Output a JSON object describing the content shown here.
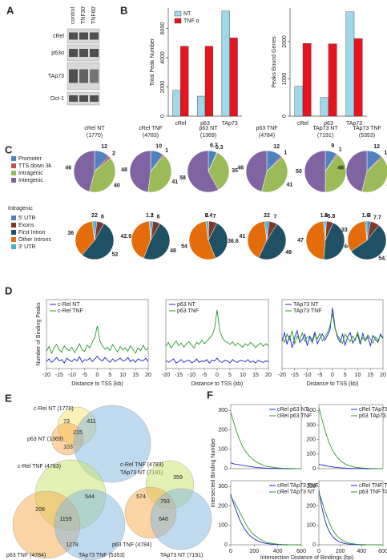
{
  "panels": [
    "A",
    "B",
    "C",
    "D",
    "E",
    "F"
  ],
  "blot": {
    "lanes": [
      "control",
      "TNF30'",
      "TNF60'"
    ],
    "rows": [
      "cRel",
      "p63α",
      "TAp73",
      "Oct-1"
    ]
  },
  "pie_legends": [
    {
      "labels": [
        "Promoter",
        "TTS down 3k",
        "Intragenic",
        "Intergenic"
      ],
      "colors": [
        "#4f81bd",
        "#c0504d",
        "#9bbb59",
        "#8064a2"
      ]
    },
    {
      "title": "Intragenic",
      "labels": [
        "5' UTR",
        "Exons",
        "First Intron",
        "Other Introns",
        "3' UTR"
      ],
      "colors": [
        "#4f81bd",
        "#7b3a2c",
        "#1f5064",
        "#e46c0a",
        "#4bacc6"
      ]
    }
  ],
  "venns": [
    {
      "labels": [
        "c-Rel  NT (1770)",
        "p63  NT (1369)",
        "TAp73  NT (7191)"
      ],
      "numbers": [
        73,
        411,
        215,
        103
      ]
    },
    {
      "labels": [
        "c-Rel  TNF (4783)",
        "p63  TNF (4784)",
        "TAp73  TNF (5353)"
      ],
      "numbers": [
        208,
        544,
        1159,
        1278
      ]
    },
    {
      "labels": [
        "c-Rel  TNF (4783)",
        "p63  TNF (4784)",
        "TAp73  NT (7191)"
      ],
      "numbers": [
        359,
        574,
        793,
        646
      ]
    }
  ],
  "chart_data": [
    {
      "type": "bar",
      "ylabel": "Total Peak Number",
      "categories": [
        "cRel",
        "p63",
        "TAp73"
      ],
      "series": [
        {
          "name": "NT",
          "color": "#9fd8ea",
          "values": [
            1770,
            1369,
            7191
          ]
        },
        {
          "name": "TNF α",
          "color": "#e8141c",
          "values": [
            4783,
            4784,
            5353
          ]
        }
      ],
      "ylim": [
        0,
        7400
      ],
      "yticks": [
        0,
        2000,
        4000,
        6000
      ]
    },
    {
      "type": "bar",
      "ylabel": "Peaks Bound Genes",
      "categories": [
        "cRel",
        "p63",
        "TAp73"
      ],
      "series": [
        {
          "color": "#9fd8ea",
          "values": [
            800,
            500,
            2800
          ]
        },
        {
          "color": "#e8141c",
          "values": [
            1950,
            1940,
            2080
          ]
        }
      ],
      "ylim": [
        0,
        2900
      ],
      "yticks": [
        0,
        1000,
        2000
      ]
    },
    {
      "type": "pie",
      "legend": 0,
      "title": "cRel NT",
      "subtitle": "(1770)",
      "values": [
        12,
        2,
        40,
        46
      ]
    },
    {
      "type": "pie",
      "legend": 0,
      "title": "cRel TNF",
      "subtitle": "(4783)",
      "values": [
        10,
        1,
        41,
        48
      ]
    },
    {
      "type": "pie",
      "legend": 0,
      "title": "p63 NT",
      "subtitle": "(1369)",
      "values": [
        6.7,
        0.3,
        35,
        58
      ]
    },
    {
      "type": "pie",
      "legend": 0,
      "title": "p63 TNF",
      "subtitle": "(4784)",
      "values": [
        12,
        1,
        41,
        46
      ]
    },
    {
      "type": "pie",
      "legend": 0,
      "title": "TAp73 NT",
      "subtitle": "(7191)",
      "values": [
        9,
        1,
        40,
        50
      ]
    },
    {
      "type": "pie",
      "legend": 0,
      "title": "TAp73 TNF",
      "subtitle": "(5353)",
      "values": [
        12,
        1,
        41,
        46
      ]
    },
    {
      "type": "pie",
      "legend": 1,
      "values": [
        2,
        6,
        52,
        36,
        2
      ]
    },
    {
      "type": "pie",
      "legend": 1,
      "values": [
        2,
        6,
        48,
        42.9,
        1.1
      ]
    },
    {
      "type": "pie",
      "legend": 1,
      "values": [
        0.4,
        7,
        36.6,
        54,
        2
      ]
    },
    {
      "type": "pie",
      "legend": 1,
      "values": [
        2,
        7,
        48,
        41,
        2
      ]
    },
    {
      "type": "pie",
      "legend": 1,
      "values": [
        1,
        5.8,
        44.6,
        47,
        1.6
      ]
    },
    {
      "type": "pie",
      "legend": 1,
      "values": [
        3,
        7.7,
        54.7,
        33,
        1.6
      ]
    },
    {
      "type": "line",
      "ylabel": "Number of Binding Peaks",
      "xlabel": "Distance to TSS (kb)",
      "x": [
        -20,
        -19,
        -18,
        -17,
        -16,
        -15,
        -14,
        -13,
        -12,
        -11,
        -10,
        -9,
        -8,
        -7,
        -6,
        -5,
        -4,
        -3,
        -2,
        -1,
        0,
        1,
        2,
        3,
        4,
        5,
        6,
        7,
        8,
        9,
        10,
        11,
        12,
        13,
        14,
        15,
        16,
        17,
        18,
        19,
        20
      ],
      "xlim": [
        -20,
        20
      ],
      "ylim": [
        0,
        100
      ],
      "xticks": [
        -20,
        -15,
        -10,
        -5,
        0,
        5,
        10,
        15,
        20
      ],
      "series": [
        {
          "name": "c-Rel NT",
          "color": "#1f1fd0",
          "values": [
            10,
            14,
            9,
            12,
            16,
            11,
            13,
            8,
            15,
            12,
            10,
            14,
            11,
            17,
            9,
            13,
            12,
            15,
            10,
            14,
            18,
            13,
            11,
            16,
            12,
            9,
            14,
            10,
            13,
            15,
            11,
            12,
            16,
            10,
            13,
            9,
            14,
            12,
            11,
            15,
            10
          ]
        },
        {
          "name": "c-Rel TNF",
          "color": "#2a9a2a",
          "values": [
            25,
            32,
            22,
            30,
            35,
            27,
            24,
            33,
            28,
            26,
            31,
            23,
            29,
            36,
            27,
            25,
            34,
            30,
            38,
            45,
            62,
            40,
            33,
            28,
            31,
            26,
            35,
            29,
            24,
            32,
            27,
            30,
            25,
            33,
            28,
            22,
            30,
            26,
            34,
            27,
            29
          ]
        }
      ]
    },
    {
      "type": "line",
      "xlabel": "Distance to TSS (kb)",
      "x": [
        -20,
        -19,
        -18,
        -17,
        -16,
        -15,
        -14,
        -13,
        -12,
        -11,
        -10,
        -9,
        -8,
        -7,
        -6,
        -5,
        -4,
        -3,
        -2,
        -1,
        0,
        1,
        2,
        3,
        4,
        5,
        6,
        7,
        8,
        9,
        10,
        11,
        12,
        13,
        14,
        15,
        16,
        17,
        18,
        19,
        20
      ],
      "xlim": [
        -20,
        20
      ],
      "ylim": [
        0,
        100
      ],
      "xticks": [
        -20,
        -15,
        -10,
        -5,
        0,
        5,
        10,
        15,
        20
      ],
      "series": [
        {
          "name": "p63 NT",
          "color": "#1f1fd0",
          "values": [
            12,
            9,
            11,
            14,
            8,
            10,
            13,
            9,
            11,
            12,
            8,
            10,
            14,
            9,
            11,
            10,
            13,
            8,
            12,
            11,
            15,
            10,
            9,
            12,
            11,
            8,
            13,
            10,
            9,
            12,
            11,
            10,
            13,
            9,
            11,
            8,
            12,
            10,
            9,
            11,
            10
          ]
        },
        {
          "name": "p63 TNF",
          "color": "#2a9a2a",
          "values": [
            32,
            38,
            30,
            35,
            40,
            33,
            37,
            31,
            36,
            39,
            34,
            30,
            38,
            35,
            41,
            36,
            40,
            44,
            48,
            58,
            85,
            55,
            45,
            40,
            38,
            35,
            39,
            33,
            37,
            34,
            31,
            36,
            33,
            38,
            35,
            30,
            34,
            37,
            32,
            36,
            33
          ]
        }
      ]
    },
    {
      "type": "line",
      "xlabel": "Distance to TSS (kb)",
      "x": [
        -20,
        -19,
        -18,
        -17,
        -16,
        -15,
        -14,
        -13,
        -12,
        -11,
        -10,
        -9,
        -8,
        -7,
        -6,
        -5,
        -4,
        -3,
        -2,
        -1,
        0,
        1,
        2,
        3,
        4,
        5,
        6,
        7,
        8,
        9,
        10,
        11,
        12,
        13,
        14,
        15,
        16,
        17,
        18,
        19,
        20
      ],
      "xlim": [
        -20,
        20
      ],
      "ylim": [
        0,
        100
      ],
      "xticks": [
        -20,
        -15,
        -10,
        -5,
        0,
        5,
        10,
        15,
        20
      ],
      "series": [
        {
          "name": "TAp73 NT",
          "color": "#1f1fd0",
          "values": [
            40,
            52,
            35,
            48,
            30,
            45,
            55,
            38,
            42,
            50,
            33,
            47,
            40,
            53,
            36,
            44,
            50,
            41,
            48,
            56,
            88,
            60,
            45,
            38,
            50,
            34,
            46,
            52,
            37,
            43,
            49,
            35,
            51,
            40,
            46,
            33,
            48,
            42,
            38,
            50,
            44
          ]
        },
        {
          "name": "TAp73 TNF",
          "color": "#2a9a2a",
          "values": [
            45,
            38,
            50,
            42,
            55,
            36,
            47,
            41,
            52,
            39,
            46,
            44,
            37,
            49,
            43,
            51,
            40,
            46,
            52,
            62,
            80,
            58,
            48,
            42,
            36,
            50,
            44,
            39,
            47,
            41,
            53,
            38,
            45,
            40,
            49,
            43,
            37,
            46,
            41,
            48,
            43
          ]
        }
      ]
    },
    {
      "type": "line",
      "ylabel": "Intersected Binding Number",
      "x": [
        0,
        25,
        50,
        75,
        100,
        125,
        150,
        175,
        200,
        225,
        250,
        275,
        300,
        325,
        350,
        375,
        400,
        425,
        450,
        475,
        500,
        525,
        550,
        575,
        600
      ],
      "xlim": [
        0,
        600
      ],
      "ylim": [
        0,
        330
      ],
      "yticks": [
        0,
        100,
        200,
        300
      ],
      "series": [
        {
          "name": "cRel p63 NT",
          "color": "#1f1fd0",
          "values": [
            30,
            25,
            22,
            20,
            17,
            14,
            12,
            10,
            8,
            6,
            5,
            4,
            3,
            3,
            2,
            2,
            1,
            1,
            1,
            0,
            0,
            0,
            0,
            0,
            0
          ]
        },
        {
          "name": "cRel p63 TNF",
          "color": "#2a9a2a",
          "values": [
            290,
            240,
            190,
            150,
            115,
            90,
            70,
            55,
            42,
            32,
            25,
            18,
            13,
            10,
            8,
            6,
            4,
            3,
            2,
            2,
            1,
            1,
            0,
            0,
            0
          ]
        }
      ]
    },
    {
      "type": "line",
      "x": [
        0,
        25,
        50,
        75,
        100,
        125,
        150,
        175,
        200,
        225,
        250,
        275,
        300,
        325,
        350,
        375,
        400,
        425,
        450,
        475,
        500,
        525,
        550,
        575,
        600
      ],
      "xlim": [
        0,
        600
      ],
      "ylim": [
        0,
        440
      ],
      "yticks": [
        0,
        100,
        200,
        300,
        400
      ],
      "series": [
        {
          "name": "cRel TAp73 NT",
          "color": "#1f1fd0",
          "values": [
            30,
            26,
            22,
            18,
            15,
            12,
            10,
            8,
            6,
            5,
            4,
            3,
            2,
            2,
            1,
            1,
            1,
            0,
            0,
            0,
            0,
            0,
            0,
            0,
            0
          ]
        },
        {
          "name": "p63 TAp73 NT",
          "color": "#2a9a2a",
          "values": [
            420,
            350,
            280,
            220,
            170,
            130,
            100,
            75,
            56,
            42,
            31,
            23,
            17,
            12,
            9,
            7,
            5,
            4,
            3,
            2,
            1,
            1,
            0,
            0,
            0
          ]
        }
      ]
    },
    {
      "type": "line",
      "xlabel": "Intersection Distance of Bindings (bp)",
      "x": [
        0,
        25,
        50,
        75,
        100,
        125,
        150,
        175,
        200,
        225,
        250,
        275,
        300,
        325,
        350,
        375,
        400,
        425,
        450,
        475,
        500,
        525,
        550,
        575,
        600
      ],
      "xlim": [
        0,
        600
      ],
      "ylim": [
        0,
        330
      ],
      "yticks": [
        0,
        100,
        200,
        300
      ],
      "xticks": [
        0,
        200,
        400,
        600
      ],
      "series": [
        {
          "name": "cRel TAp73 TNF",
          "color": "#1f1fd0",
          "values": [
            260,
            210,
            170,
            130,
            100,
            75,
            55,
            40,
            30,
            22,
            15,
            10,
            7,
            5,
            3,
            2,
            1,
            1,
            0,
            0,
            0,
            0,
            0,
            0,
            0
          ]
        },
        {
          "name": "cRel TAp73 NT",
          "color": "#2a9a2a",
          "values": [
            250,
            225,
            200,
            170,
            140,
            110,
            85,
            65,
            50,
            38,
            28,
            20,
            14,
            10,
            7,
            5,
            3,
            2,
            1,
            1,
            0,
            0,
            0,
            0,
            0
          ]
        }
      ]
    },
    {
      "type": "line",
      "x": [
        0,
        25,
        50,
        75,
        100,
        125,
        150,
        175,
        200,
        225,
        250,
        275,
        300,
        325,
        350,
        375,
        400,
        425,
        450,
        475,
        500,
        525,
        550,
        575,
        600
      ],
      "xlim": [
        0,
        600
      ],
      "ylim": [
        0,
        330
      ],
      "yticks": [
        0,
        100,
        200,
        300
      ],
      "xticks": [
        0,
        200,
        400,
        600
      ],
      "series": [
        {
          "name": "cRel TNF TAp73 NT",
          "color": "#1f1fd0",
          "values": [
            280,
            200,
            140,
            95,
            65,
            45,
            30,
            20,
            13,
            9,
            6,
            4,
            3,
            2,
            1,
            1,
            0,
            0,
            0,
            0,
            0,
            0,
            0,
            0,
            0
          ]
        },
        {
          "name": "p63 TNF TAp73 NT",
          "color": "#2a9a2a",
          "values": [
            270,
            230,
            185,
            145,
            110,
            80,
            58,
            42,
            30,
            21,
            15,
            10,
            7,
            5,
            3,
            2,
            1,
            1,
            0,
            0,
            0,
            0,
            0,
            0,
            0
          ]
        }
      ]
    }
  ]
}
